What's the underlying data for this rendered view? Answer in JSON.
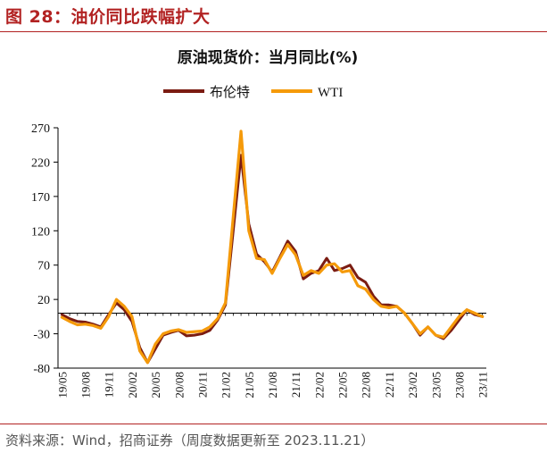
{
  "figure": {
    "label": "图 28：油价同比跌幅扩大",
    "source": "资料来源：Wind，招商证券（周度数据更新至 2023.11.21）"
  },
  "colors": {
    "brent": "#7b1c12",
    "wti": "#f59a0a",
    "accent": "#b22222"
  },
  "chart_data": {
    "type": "line",
    "title": "原油现货价：当月同比(%)",
    "xlabel": "",
    "ylabel": "",
    "ylim": [
      -80,
      270
    ],
    "yticks": [
      270,
      220,
      170,
      120,
      70,
      20,
      -30,
      -80
    ],
    "xtick_labels": [
      "19/05",
      "19/08",
      "19/11",
      "20/02",
      "20/05",
      "20/08",
      "20/11",
      "21/02",
      "21/05",
      "21/08",
      "21/11",
      "22/02",
      "22/05",
      "22/08",
      "22/11",
      "23/02",
      "23/05",
      "23/08",
      "23/11"
    ],
    "x": [
      "19/05",
      "19/06",
      "19/07",
      "19/08",
      "19/09",
      "19/10",
      "19/11",
      "19/12",
      "20/01",
      "20/02",
      "20/03",
      "20/04",
      "20/05",
      "20/06",
      "20/07",
      "20/08",
      "20/09",
      "20/10",
      "20/11",
      "20/12",
      "21/01",
      "21/02",
      "21/03",
      "21/04",
      "21/05",
      "21/06",
      "21/07",
      "21/08",
      "21/09",
      "21/10",
      "21/11",
      "21/12",
      "22/01",
      "22/02",
      "22/03",
      "22/04",
      "22/05",
      "22/06",
      "22/07",
      "22/08",
      "22/09",
      "22/10",
      "22/11",
      "22/12",
      "23/01",
      "23/02",
      "23/03",
      "23/04",
      "23/05",
      "23/06",
      "23/07",
      "23/08",
      "23/09",
      "23/10",
      "23/11"
    ],
    "legend": [
      "布伦特",
      "WTI"
    ],
    "series": [
      {
        "name": "布伦特",
        "color": "#7b1c12",
        "values": [
          -2,
          -8,
          -12,
          -13,
          -16,
          -20,
          -2,
          15,
          5,
          -12,
          -50,
          -72,
          -52,
          -32,
          -28,
          -25,
          -33,
          -32,
          -30,
          -25,
          -10,
          12,
          120,
          230,
          130,
          86,
          75,
          60,
          82,
          105,
          90,
          50,
          58,
          62,
          80,
          62,
          65,
          70,
          52,
          45,
          25,
          12,
          12,
          10,
          0,
          -15,
          -32,
          -20,
          -32,
          -37,
          -25,
          -10,
          5,
          -2,
          -5
        ]
      },
      {
        "name": "WTI",
        "color": "#f59a0a",
        "values": [
          -6,
          -12,
          -17,
          -16,
          -18,
          -22,
          -5,
          20,
          10,
          -5,
          -55,
          -72,
          -45,
          -30,
          -26,
          -24,
          -28,
          -27,
          -26,
          -20,
          -8,
          15,
          140,
          265,
          120,
          80,
          78,
          58,
          80,
          100,
          85,
          55,
          62,
          58,
          70,
          72,
          60,
          62,
          40,
          35,
          20,
          10,
          8,
          10,
          0,
          -15,
          -30,
          -20,
          -32,
          -35,
          -20,
          -5,
          5,
          0,
          -5
        ]
      }
    ]
  }
}
